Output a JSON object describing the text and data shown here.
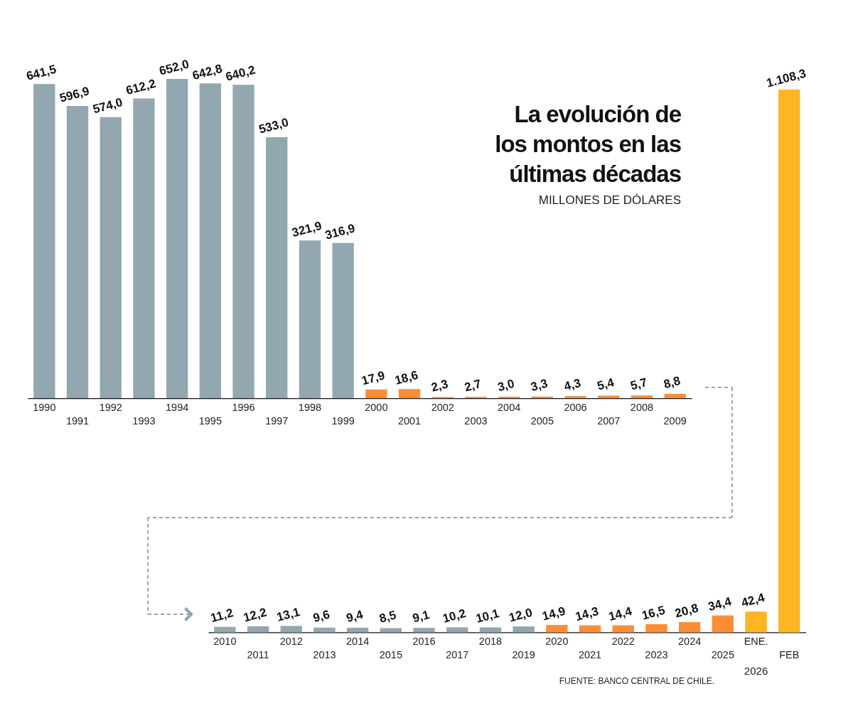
{
  "chart_data": [
    {
      "type": "bar",
      "title": "La evolución de los montos en las últimas décadas",
      "subtitle": "MILLONES DE DÓLARES",
      "categories": [
        "1990",
        "1991",
        "1992",
        "1993",
        "1994",
        "1995",
        "1996",
        "1997",
        "1998",
        "1999",
        "2000",
        "2001",
        "2002",
        "2003",
        "2004",
        "2005",
        "2006",
        "2007",
        "2008",
        "2009"
      ],
      "values": [
        641.5,
        596.9,
        574.0,
        612.2,
        652.0,
        642.8,
        640.2,
        533.0,
        321.9,
        316.9,
        17.9,
        18.6,
        2.3,
        2.7,
        3.0,
        3.3,
        4.3,
        5.4,
        5.7,
        8.8
      ],
      "value_labels": [
        "641,5",
        "596,9",
        "574,0",
        "612,2",
        "652,0",
        "642,8",
        "640,2",
        "533,0",
        "321,9",
        "316,9",
        "17,9",
        "18,6",
        "2,3",
        "2,7",
        "3,0",
        "3,3",
        "4,3",
        "5,4",
        "5,7",
        "8,8"
      ],
      "colors": [
        "#93a7b0",
        "#93a7b0",
        "#93a7b0",
        "#93a7b0",
        "#93a7b0",
        "#93a7b0",
        "#93a7b0",
        "#93a7b0",
        "#93a7b0",
        "#93a7b0",
        "#fd8e35",
        "#fd8e35",
        "#fd8e35",
        "#fd8e35",
        "#fd8e35",
        "#fd8e35",
        "#fd8e35",
        "#fd8e35",
        "#fd8e35",
        "#fd8e35"
      ]
    },
    {
      "type": "bar",
      "categories": [
        "2010",
        "2011",
        "2012",
        "2013",
        "2014",
        "2015",
        "2016",
        "2017",
        "2018",
        "2019",
        "2020",
        "2021",
        "2022",
        "2023",
        "2024",
        "2025",
        "ENE.",
        "FEB"
      ],
      "values": [
        11.2,
        12.2,
        13.1,
        9.6,
        9.4,
        8.5,
        9.1,
        10.2,
        10.1,
        12.0,
        14.9,
        14.3,
        14.4,
        16.5,
        20.8,
        34.4,
        42.4,
        1108.3
      ],
      "value_labels": [
        "11,2",
        "12,2",
        "13,1",
        "9,6",
        "9,4",
        "8,5",
        "9,1",
        "10,2",
        "10,1",
        "12,0",
        "14,9",
        "14,3",
        "14,4",
        "16,5",
        "20,8",
        "34,4",
        "42,4",
        "1.108,3"
      ],
      "colors": [
        "#93a7b0",
        "#93a7b0",
        "#93a7b0",
        "#93a7b0",
        "#93a7b0",
        "#93a7b0",
        "#93a7b0",
        "#93a7b0",
        "#93a7b0",
        "#93a7b0",
        "#fd8e35",
        "#fd8e35",
        "#fd8e35",
        "#fd8e35",
        "#fd8e35",
        "#fd8e35",
        "#fdb524",
        "#fdb524"
      ],
      "annotations": [
        "2026",
        "FUENTE: BANCO CENTRAL DE CHILE."
      ]
    }
  ]
}
